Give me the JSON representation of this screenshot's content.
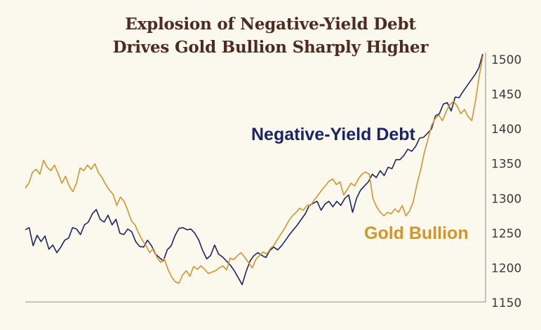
{
  "title_line1": "Explosion of Negative-Yield Debt",
  "title_line2": "Drives Gold Bullion Sharply Higher",
  "chart_data": {
    "type": "line",
    "title": "Explosion of Negative-Yield Debt Drives Gold Bullion Sharply Higher",
    "xlabel": "",
    "ylabel": "",
    "ylim": [
      1150,
      1510
    ],
    "y_ticks": [
      1150,
      1200,
      1250,
      1300,
      1350,
      1400,
      1450,
      1500
    ],
    "y_axis_side": "right",
    "grid": false,
    "colors": {
      "Negative-Yield Debt": "#1b2466",
      "Gold Bullion": "#d4942a"
    },
    "series": [
      {
        "name": "Negative-Yield Debt",
        "label_color": "#1b2466",
        "values": [
          1255,
          1258,
          1232,
          1247,
          1238,
          1246,
          1227,
          1233,
          1222,
          1230,
          1240,
          1243,
          1258,
          1256,
          1248,
          1262,
          1266,
          1278,
          1284,
          1270,
          1266,
          1276,
          1262,
          1270,
          1250,
          1248,
          1256,
          1252,
          1238,
          1231,
          1230,
          1240,
          1232,
          1220,
          1215,
          1210,
          1226,
          1232,
          1247,
          1257,
          1258,
          1255,
          1256,
          1250,
          1240,
          1225,
          1213,
          1218,
          1233,
          1220,
          1216,
          1210,
          1204,
          1196,
          1186,
          1176,
          1195,
          1210,
          1218,
          1222,
          1218,
          1215,
          1225,
          1230,
          1226,
          1232,
          1240,
          1248,
          1255,
          1262,
          1270,
          1278,
          1290,
          1293,
          1296,
          1283,
          1292,
          1296,
          1288,
          1296,
          1290,
          1300,
          1305,
          1280,
          1300,
          1312,
          1318,
          1324,
          1335,
          1330,
          1340,
          1333,
          1345,
          1343,
          1356,
          1356,
          1362,
          1371,
          1368,
          1375,
          1387,
          1388,
          1394,
          1400,
          1419,
          1422,
          1436,
          1438,
          1426,
          1446,
          1445,
          1454,
          1462,
          1470,
          1478,
          1488,
          1508
        ]
      },
      {
        "name": "Gold Bullion",
        "label_color": "#d4942a",
        "values": [
          1315,
          1322,
          1338,
          1342,
          1335,
          1355,
          1345,
          1340,
          1348,
          1336,
          1322,
          1332,
          1318,
          1310,
          1322,
          1344,
          1340,
          1348,
          1342,
          1350,
          1337,
          1330,
          1320,
          1312,
          1306,
          1290,
          1302,
          1296,
          1283,
          1268,
          1262,
          1250,
          1240,
          1232,
          1222,
          1228,
          1215,
          1208,
          1213,
          1198,
          1187,
          1180,
          1178,
          1190,
          1196,
          1188,
          1202,
          1198,
          1203,
          1198,
          1192,
          1194,
          1196,
          1200,
          1203,
          1197,
          1214,
          1212,
          1218,
          1222,
          1215,
          1208,
          1200,
          1212,
          1218,
          1223,
          1220,
          1228,
          1233,
          1242,
          1250,
          1258,
          1268,
          1275,
          1280,
          1286,
          1283,
          1290,
          1290,
          1298,
          1305,
          1312,
          1318,
          1325,
          1328,
          1320,
          1324,
          1305,
          1313,
          1322,
          1318,
          1328,
          1335,
          1338,
          1335,
          1300,
          1288,
          1280,
          1275,
          1280,
          1278,
          1285,
          1280,
          1290,
          1275,
          1282,
          1295,
          1320,
          1340,
          1365,
          1385,
          1405,
          1415,
          1420,
          1412,
          1425,
          1435,
          1440,
          1433,
          1422,
          1428,
          1418,
          1412,
          1440,
          1475,
          1505
        ]
      }
    ]
  }
}
